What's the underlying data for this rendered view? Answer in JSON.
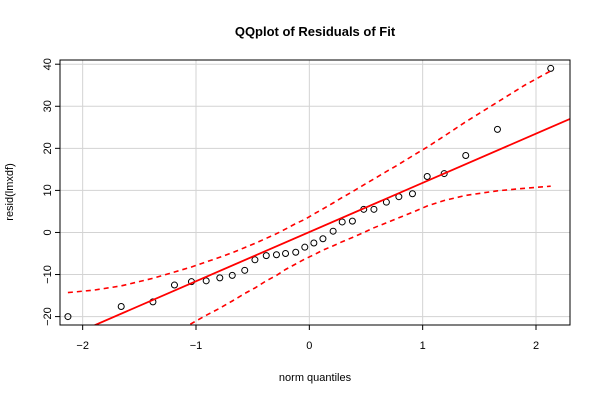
{
  "chart_data": {
    "type": "scatter",
    "title": "QQplot of Residuals of Fit",
    "xlabel": "norm quantiles",
    "ylabel": "resid(lmxdf)",
    "xlim": [
      -2.2,
      2.3
    ],
    "ylim": [
      -22,
      41
    ],
    "xticks": [
      -2,
      -1,
      0,
      1,
      2
    ],
    "yticks": [
      -20,
      -10,
      0,
      10,
      20,
      30,
      40
    ],
    "grid": true,
    "colors": {
      "points": "#000000",
      "fit_line": "#ff0000",
      "band": "#ff0000",
      "grid": "#d3d3d3"
    },
    "series": [
      {
        "kind": "points",
        "x": [
          -2.13,
          -1.66,
          -1.38,
          -1.19,
          -1.04,
          -0.91,
          -0.79,
          -0.68,
          -0.57,
          -0.48,
          -0.38,
          -0.29,
          -0.21,
          -0.12,
          -0.04,
          0.04,
          0.12,
          0.21,
          0.29,
          0.38,
          0.48,
          0.57,
          0.68,
          0.79,
          0.91,
          1.04,
          1.19,
          1.38,
          1.66,
          2.13
        ],
        "y": [
          -20.0,
          -17.6,
          -16.5,
          -12.5,
          -11.7,
          -11.5,
          -10.8,
          -10.2,
          -9.0,
          -6.5,
          -5.5,
          -5.3,
          -5.0,
          -4.7,
          -3.5,
          -2.5,
          -1.5,
          0.3,
          2.5,
          2.7,
          5.5,
          5.5,
          7.2,
          8.5,
          9.2,
          13.3,
          14.0,
          18.3,
          24.5,
          39.0
        ]
      },
      {
        "kind": "fit_line",
        "x": [
          -2.3,
          2.3
        ],
        "y": [
          -26.8,
          27.0
        ]
      },
      {
        "kind": "upper_band",
        "x": [
          -2.13,
          -1.9,
          -1.66,
          -1.38,
          -1.19,
          -1.04,
          -0.91,
          -0.79,
          -0.68,
          -0.57,
          -0.48,
          -0.38,
          -0.29,
          -0.21,
          -0.12,
          -0.04,
          0.04,
          0.12,
          0.21,
          0.29,
          0.38,
          0.48,
          0.57,
          0.68,
          0.79,
          0.91,
          1.04,
          1.19,
          1.38,
          1.66,
          1.9,
          2.13
        ],
        "y": [
          -14.3,
          -13.7,
          -12.7,
          -10.9,
          -9.4,
          -8.2,
          -7.0,
          -5.9,
          -4.8,
          -3.6,
          -2.6,
          -1.4,
          -0.3,
          0.8,
          2.1,
          3.1,
          4.4,
          5.6,
          7.0,
          8.3,
          9.7,
          11.3,
          12.7,
          14.5,
          16.2,
          18.2,
          20.3,
          22.9,
          26.3,
          31.0,
          35.0,
          38.4
        ]
      },
      {
        "kind": "lower_band",
        "x": [
          -1.05,
          -0.91,
          -0.79,
          -0.68,
          -0.57,
          -0.48,
          -0.38,
          -0.29,
          -0.21,
          -0.12,
          -0.04,
          0.04,
          0.12,
          0.21,
          0.29,
          0.38,
          0.48,
          0.57,
          0.68,
          0.79,
          0.91,
          1.04,
          1.19,
          1.38,
          1.66,
          1.9,
          2.13
        ],
        "y": [
          -21.8,
          -19.7,
          -18.0,
          -16.3,
          -14.5,
          -13.2,
          -11.5,
          -10.2,
          -8.8,
          -7.5,
          -6.3,
          -5.3,
          -4.2,
          -3.2,
          -2.2,
          -1.2,
          0.0,
          1.1,
          2.3,
          3.5,
          4.8,
          6.3,
          7.6,
          8.8,
          9.9,
          10.5,
          11.0
        ]
      }
    ]
  }
}
